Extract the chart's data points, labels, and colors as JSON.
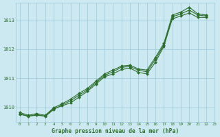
{
  "title": "Graphe pression niveau de la mer (hPa)",
  "background_color": "#cce8f0",
  "grid_color": "#9ac8d8",
  "line_color": "#2d6e2d",
  "marker_color": "#2d6e2d",
  "xlim": [
    -0.5,
    23
  ],
  "ylim": [
    1009.5,
    1013.6
  ],
  "xticks": [
    0,
    1,
    2,
    3,
    4,
    5,
    6,
    7,
    8,
    9,
    10,
    11,
    12,
    13,
    14,
    15,
    16,
    17,
    18,
    19,
    20,
    21,
    22,
    23
  ],
  "yticks": [
    1010,
    1011,
    1012,
    1013
  ],
  "series1": [
    1009.75,
    1009.7,
    1009.72,
    1009.7,
    1009.95,
    1010.05,
    1010.15,
    1010.35,
    1010.55,
    1010.8,
    1011.05,
    1011.15,
    1011.3,
    1011.35,
    1011.2,
    1011.15,
    1011.55,
    1012.1,
    1013.05,
    1013.15,
    1013.25,
    1013.1,
    1013.1
  ],
  "series2": [
    1009.78,
    1009.68,
    1009.75,
    1009.68,
    1009.92,
    1010.08,
    1010.22,
    1010.42,
    1010.6,
    1010.85,
    1011.1,
    1011.22,
    1011.38,
    1011.4,
    1011.28,
    1011.22,
    1011.65,
    1012.15,
    1013.12,
    1013.22,
    1013.35,
    1013.18,
    1013.15
  ],
  "series3": [
    1009.82,
    1009.72,
    1009.78,
    1009.72,
    1009.98,
    1010.12,
    1010.28,
    1010.48,
    1010.65,
    1010.9,
    1011.15,
    1011.28,
    1011.42,
    1011.45,
    1011.32,
    1011.28,
    1011.72,
    1012.2,
    1013.18,
    1013.28,
    1013.45,
    1013.22,
    1013.18
  ]
}
